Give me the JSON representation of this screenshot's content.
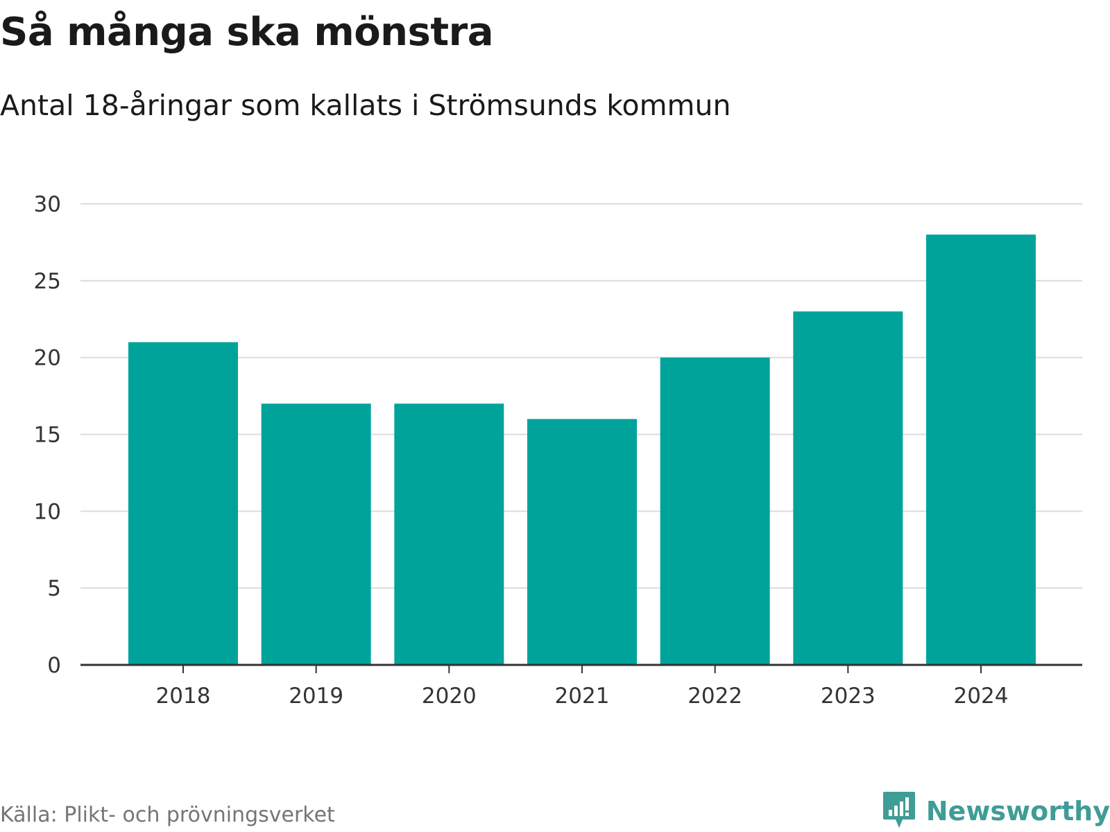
{
  "header": {
    "title": "Så många ska mönstra",
    "subtitle": "Antal 18-åringar som kallats i Strömsunds kommun"
  },
  "footer": {
    "source": "Källa: Plikt- och prövningsverket",
    "brand": "Newsworthy"
  },
  "colors": {
    "bar": "#00a39a",
    "grid": "#dcdcdc",
    "axis": "#333333",
    "brand": "#3f9d96"
  },
  "chart_data": {
    "type": "bar",
    "title": "Så många ska mönstra",
    "subtitle": "Antal 18-åringar som kallats i Strömsunds kommun",
    "categories": [
      "2018",
      "2019",
      "2020",
      "2021",
      "2022",
      "2023",
      "2024"
    ],
    "values": [
      21,
      17,
      17,
      16,
      20,
      23,
      28
    ],
    "xlabel": "",
    "ylabel": "",
    "ylim": [
      0,
      30
    ],
    "yticks": [
      0,
      5,
      10,
      15,
      20,
      25,
      30
    ],
    "grid": true,
    "legend": "none"
  }
}
